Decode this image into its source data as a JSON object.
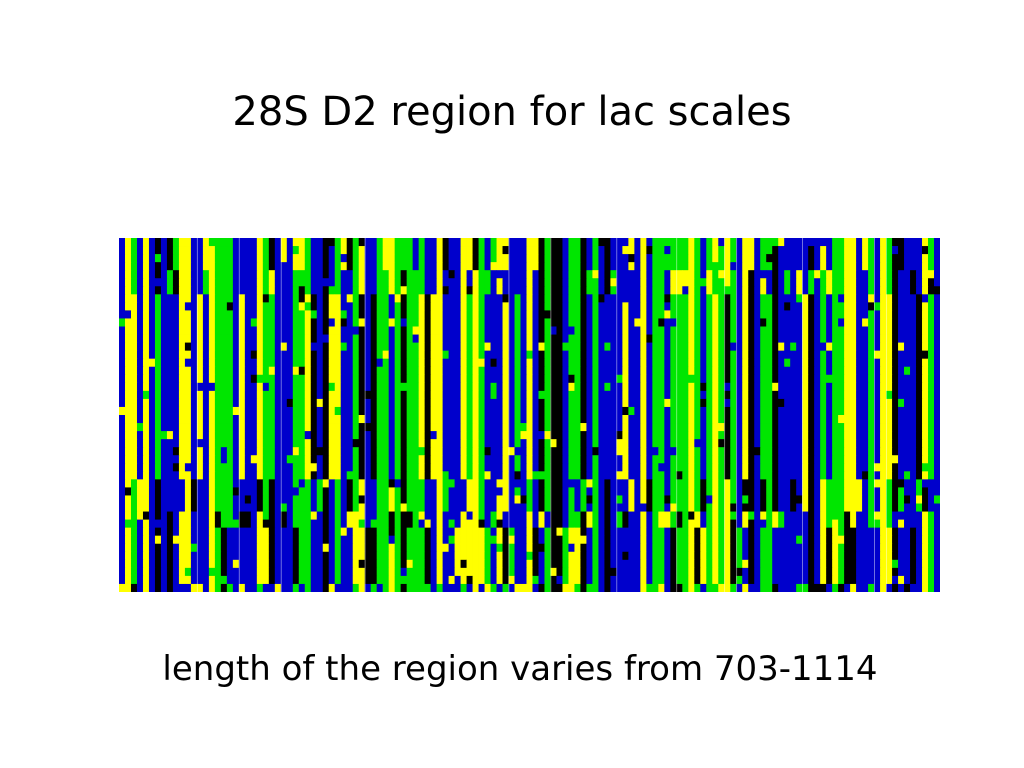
{
  "slide": {
    "title": "28S D2 region for lac scales",
    "caption": "length of the region varies from 703-1114"
  },
  "alignment": {
    "description_colors": {
      "A": "#00e600",
      "C": "#0000cc",
      "G": "#000000",
      "T": "#ffff00",
      "gap": "#ffffff"
    },
    "alphabet": "ACGT"
  }
}
